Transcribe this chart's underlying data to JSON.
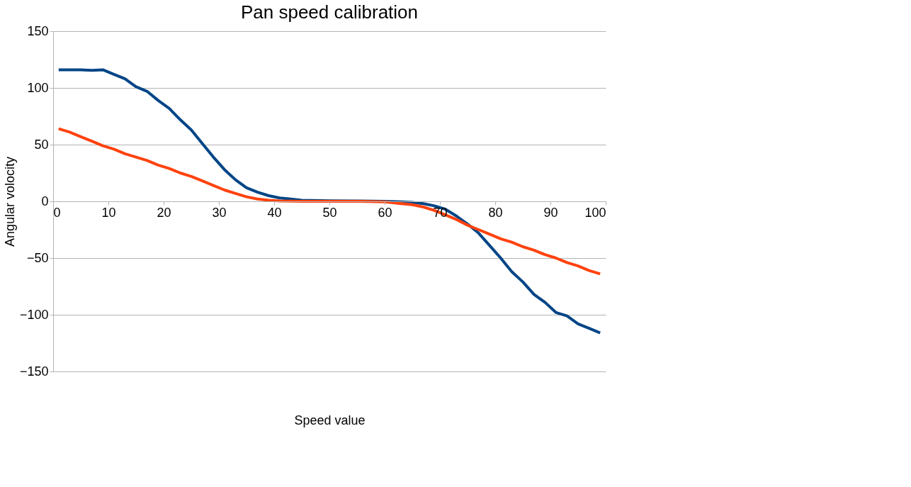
{
  "chart_data": {
    "type": "line",
    "title": "Pan  speed calibration",
    "xlabel": "Speed value",
    "ylabel": "Angular volocity",
    "xlim": [
      0,
      100
    ],
    "xticks": [
      0,
      10,
      20,
      30,
      40,
      50,
      60,
      70,
      80,
      90,
      100
    ],
    "ylim": [
      -150,
      150
    ],
    "yticks": [
      -150,
      -100,
      -50,
      0,
      50,
      100,
      150
    ],
    "grid": "y",
    "legend": false,
    "marker": "none",
    "line_style": "solid",
    "series": [
      {
        "color": "#004586",
        "x": [
          1,
          3,
          5,
          7,
          9,
          11,
          13,
          15,
          17,
          19,
          21,
          23,
          25,
          27,
          29,
          31,
          33,
          35,
          37,
          39,
          41,
          43,
          45,
          50,
          55,
          60,
          63,
          65,
          67,
          69,
          71,
          73,
          75,
          77,
          79,
          81,
          83,
          85,
          87,
          89,
          91,
          93,
          95,
          97,
          99
        ],
        "values": [
          116,
          116,
          116,
          115.5,
          116,
          112,
          108,
          101,
          97,
          89,
          82,
          72,
          63,
          51,
          39,
          28,
          19,
          12,
          8,
          5,
          3,
          2,
          1,
          0.5,
          0.3,
          0,
          -0.5,
          -1,
          -2,
          -4,
          -7,
          -13,
          -20,
          -28,
          -39,
          -50,
          -62,
          -71,
          -82,
          -89,
          -98,
          -101,
          -108,
          -112,
          -116
        ]
      },
      {
        "color": "#ff420e",
        "x": [
          1,
          3,
          5,
          7,
          9,
          11,
          13,
          15,
          17,
          19,
          21,
          23,
          25,
          27,
          29,
          31,
          33,
          35,
          37,
          39,
          41,
          45,
          55,
          60,
          63,
          65,
          67,
          69,
          71,
          73,
          75,
          77,
          79,
          81,
          83,
          85,
          87,
          89,
          91,
          93,
          95,
          97,
          99
        ],
        "values": [
          64,
          61,
          57,
          53,
          49,
          46,
          42,
          39,
          36,
          32,
          29,
          25,
          22,
          18,
          14,
          10,
          7,
          4,
          2,
          1,
          0.3,
          0,
          0,
          -0.5,
          -2,
          -3,
          -5,
          -8,
          -12,
          -16,
          -21,
          -25,
          -29,
          -33,
          -36,
          -40,
          -43,
          -47,
          -50,
          -54,
          -57,
          -61,
          -64
        ]
      }
    ]
  }
}
